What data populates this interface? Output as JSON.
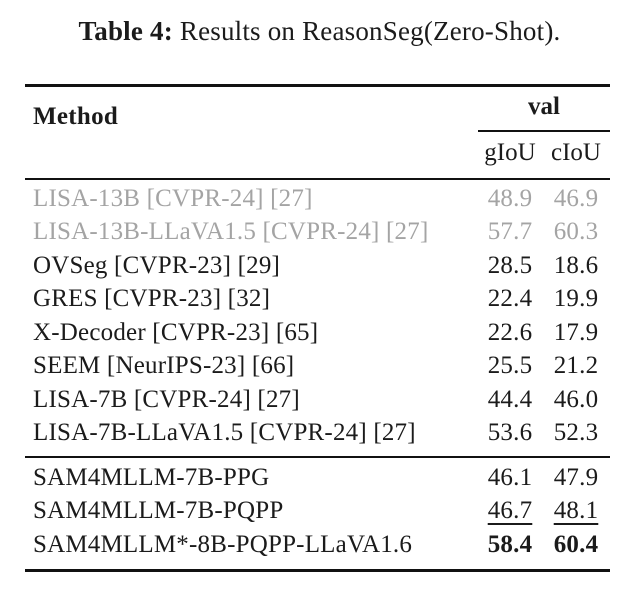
{
  "caption": {
    "label": "Table 4:",
    "text": " Results on ReasonSeg(Zero-Shot)."
  },
  "header": {
    "method": "Method",
    "group": "val",
    "sub": [
      "gIoU",
      "cIoU"
    ]
  },
  "rows": [
    {
      "method": "LISA-13B [CVPR-24] [27]",
      "giou": "48.9",
      "ciou": "46.9"
    },
    {
      "method": "LISA-13B-LLaVA1.5 [CVPR-24] [27]",
      "giou": "57.7",
      "ciou": "60.3"
    },
    {
      "method": "OVSeg [CVPR-23] [29]",
      "giou": "28.5",
      "ciou": "18.6"
    },
    {
      "method": "GRES [CVPR-23] [32]",
      "giou": "22.4",
      "ciou": "19.9"
    },
    {
      "method": "X-Decoder [CVPR-23] [65]",
      "giou": "22.6",
      "ciou": "17.9"
    },
    {
      "method": "SEEM [NeurIPS-23] [66]",
      "giou": "25.5",
      "ciou": "21.2"
    },
    {
      "method": "LISA-7B [CVPR-24] [27]",
      "giou": "44.4",
      "ciou": "46.0"
    },
    {
      "method": "LISA-7B-LLaVA1.5 [CVPR-24] [27]",
      "giou": "53.6",
      "ciou": "52.3"
    },
    {
      "method": "SAM4MLLM-7B-PPG",
      "giou": "46.1",
      "ciou": "47.9"
    },
    {
      "method": "SAM4MLLM-7B-PQPP",
      "giou": "46.7",
      "ciou": "48.1"
    },
    {
      "method": "SAM4MLLM*-8B-PQPP-LLaVA1.6",
      "giou": "58.4",
      "ciou": "60.4"
    }
  ],
  "colors": {
    "ink": "#1b1b1b",
    "muted": "#a4a4a4",
    "rule": "#111111"
  }
}
